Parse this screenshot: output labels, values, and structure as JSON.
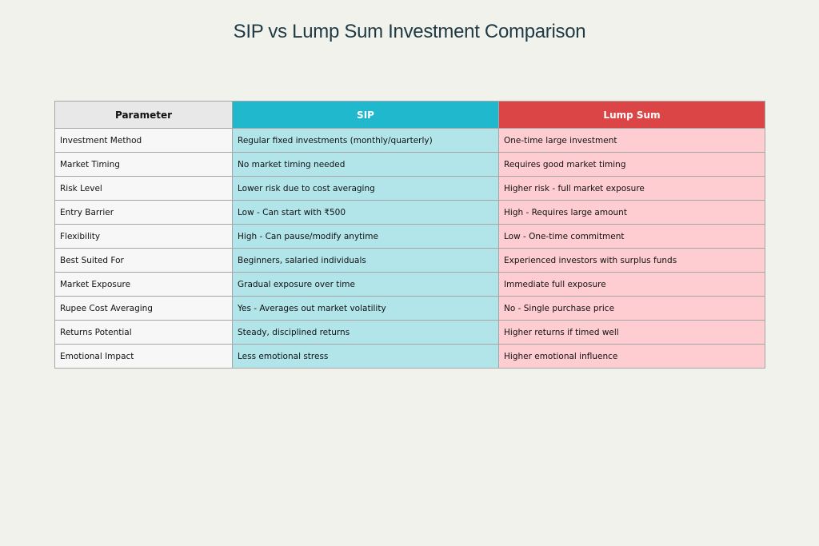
{
  "title": "SIP vs Lump Sum Investment Comparison",
  "colors": {
    "sip_header": "#20b8cc",
    "lump_header": "#dc4545",
    "sip_cell": "#b2e5ea",
    "lump_cell": "#fecdd1",
    "param_header": "#e8e8e8"
  },
  "table": {
    "headers": [
      "Parameter",
      "SIP",
      "Lump Sum"
    ],
    "rows": [
      [
        "Investment Method",
        "Regular fixed investments (monthly/quarterly)",
        "One-time large investment"
      ],
      [
        "Market Timing",
        "No market timing needed",
        "Requires good market timing"
      ],
      [
        "Risk Level",
        "Lower risk due to cost averaging",
        "Higher risk - full market exposure"
      ],
      [
        "Entry Barrier",
        "Low - Can start with ₹500",
        "High - Requires large amount"
      ],
      [
        "Flexibility",
        "High - Can pause/modify anytime",
        "Low - One-time commitment"
      ],
      [
        "Best Suited For",
        "Beginners, salaried individuals",
        "Experienced investors with surplus funds"
      ],
      [
        "Market Exposure",
        "Gradual exposure over time",
        "Immediate full exposure"
      ],
      [
        "Rupee Cost Averaging",
        "Yes - Averages out market volatility",
        "No - Single purchase price"
      ],
      [
        "Returns Potential",
        "Steady, disciplined returns",
        "Higher returns if timed well"
      ],
      [
        "Emotional Impact",
        "Less emotional stress",
        "Higher emotional influence"
      ]
    ]
  }
}
